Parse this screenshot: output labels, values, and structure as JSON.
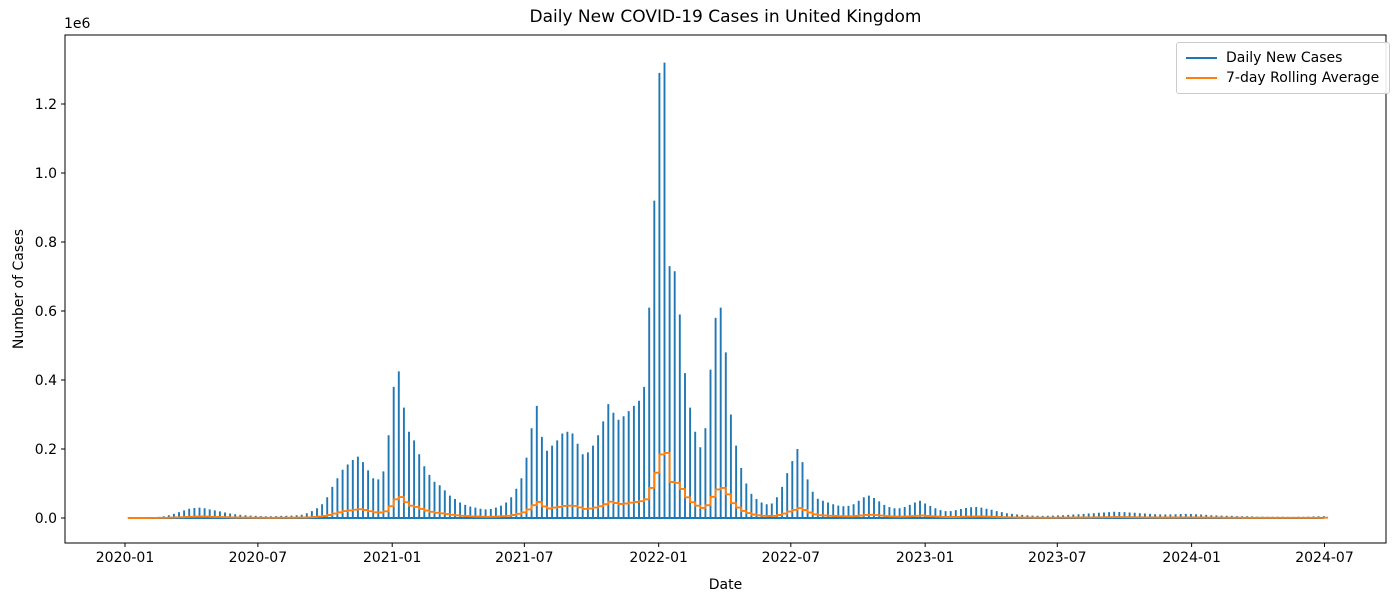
{
  "chart_data": {
    "type": "line",
    "title": "Daily New COVID-19 Cases in United Kingdom",
    "xlabel": "Date",
    "ylabel": "Number of Cases",
    "y_offset_text": "1e6",
    "grid": false,
    "legend_position": "upper right",
    "xlim": [
      "2019-10-11",
      "2024-09-20"
    ],
    "ylim": [
      -75000,
      1400000
    ],
    "x_ticks": [
      "2020-01",
      "2020-07",
      "2021-01",
      "2021-07",
      "2022-01",
      "2022-07",
      "2023-01",
      "2023-07",
      "2024-01",
      "2024-07"
    ],
    "y_ticks": [
      "0.0",
      "0.2",
      "0.4",
      "0.6",
      "0.8",
      "1.0",
      "1.2"
    ],
    "series": [
      {
        "name": "Daily New Cases",
        "color": "#1f77b4",
        "start_date": "2020-01-05",
        "interval_days": 7,
        "note": "cases reported in weekly batches: one spike day per week, intervening days are 0",
        "values": [
          300,
          400,
          600,
          900,
          1400,
          2200,
          3200,
          5000,
          8000,
          12000,
          17000,
          22000,
          27000,
          29000,
          30000,
          28000,
          25000,
          22000,
          19000,
          16000,
          13000,
          11000,
          9000,
          8000,
          7000,
          6000,
          5500,
          5000,
          5000,
          5500,
          6000,
          6500,
          7000,
          8000,
          9500,
          14000,
          20000,
          28000,
          40000,
          60000,
          90000,
          115000,
          140000,
          155000,
          168000,
          178000,
          162000,
          138000,
          115000,
          112000,
          135000,
          240000,
          380000,
          425000,
          320000,
          250000,
          225000,
          185000,
          150000,
          125000,
          105000,
          95000,
          80000,
          65000,
          55000,
          45000,
          38000,
          33000,
          30000,
          27000,
          25000,
          26000,
          30000,
          36000,
          45000,
          60000,
          85000,
          115000,
          175000,
          260000,
          325000,
          235000,
          195000,
          210000,
          225000,
          245000,
          250000,
          245000,
          215000,
          185000,
          190000,
          210000,
          240000,
          280000,
          330000,
          305000,
          285000,
          295000,
          310000,
          325000,
          340000,
          380000,
          610000,
          920000,
          1290000,
          1320000,
          730000,
          715000,
          590000,
          420000,
          320000,
          250000,
          205000,
          260000,
          430000,
          580000,
          610000,
          480000,
          300000,
          210000,
          145000,
          100000,
          70000,
          55000,
          45000,
          40000,
          42000,
          60000,
          90000,
          130000,
          165000,
          200000,
          162000,
          112000,
          76000,
          56000,
          50000,
          45000,
          40000,
          36000,
          34000,
          35000,
          40000,
          50000,
          60000,
          65000,
          58000,
          48000,
          38000,
          32000,
          28000,
          28000,
          32000,
          38000,
          45000,
          50000,
          42000,
          35000,
          28000,
          23000,
          20000,
          20000,
          23000,
          26000,
          29000,
          31000,
          32000,
          30000,
          27000,
          24000,
          20000,
          17000,
          14000,
          12000,
          10000,
          9000,
          8000,
          7000,
          6500,
          6000,
          6500,
          7000,
          7500,
          8000,
          9000,
          10000,
          11000,
          12000,
          13000,
          14000,
          15000,
          16000,
          17000,
          18000,
          17500,
          17000,
          16000,
          15000,
          14000,
          13000,
          12000,
          11000,
          10500,
          10000,
          10500,
          11000,
          11500,
          12000,
          11500,
          11000,
          10000,
          9000,
          8000,
          7500,
          7000,
          6500,
          6000,
          5500,
          5000,
          4800,
          4500,
          4200,
          4000,
          3800,
          3600,
          3500,
          3400,
          3300,
          3300,
          3400,
          3600,
          4000,
          4500,
          5000,
          5500
        ]
      },
      {
        "name": "7-day Rolling Average",
        "color": "#ff7f0e",
        "window_days": 7,
        "derived_from": "Daily New Cases",
        "note": "equals each weekly batch value divided by 7, stepping at each reporting day"
      }
    ]
  }
}
